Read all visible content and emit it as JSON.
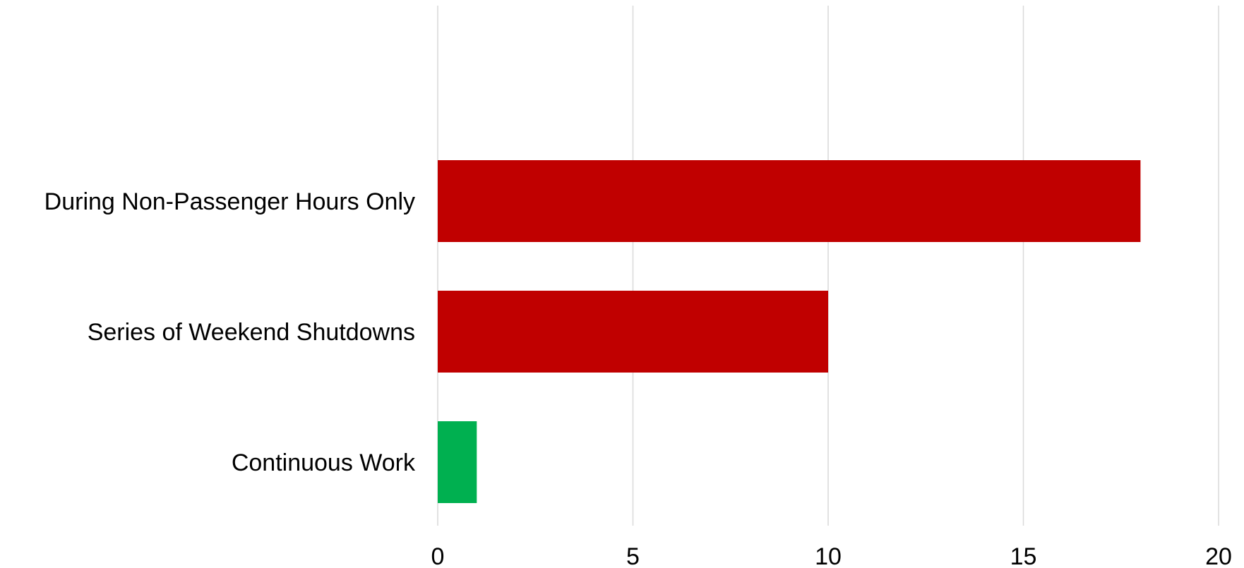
{
  "chart_data": {
    "type": "bar",
    "orientation": "horizontal",
    "title": "",
    "xlabel": "",
    "ylabel": "",
    "categories": [
      "During Non-Passenger Hours Only",
      "Series of Weekend Shutdowns",
      "Continuous Work"
    ],
    "values": [
      18,
      10,
      1
    ],
    "bar_colors": [
      "#c00000",
      "#c00000",
      "#00b050"
    ],
    "xlim": [
      0,
      20
    ],
    "xticks": [
      0,
      5,
      10,
      15,
      20
    ],
    "xtick_labels": [
      "0",
      "5",
      "10",
      "15",
      "20"
    ],
    "grid": "vertical",
    "legend": "none",
    "colors": {
      "grid": "#d9d9d9",
      "text": "#000000"
    }
  }
}
